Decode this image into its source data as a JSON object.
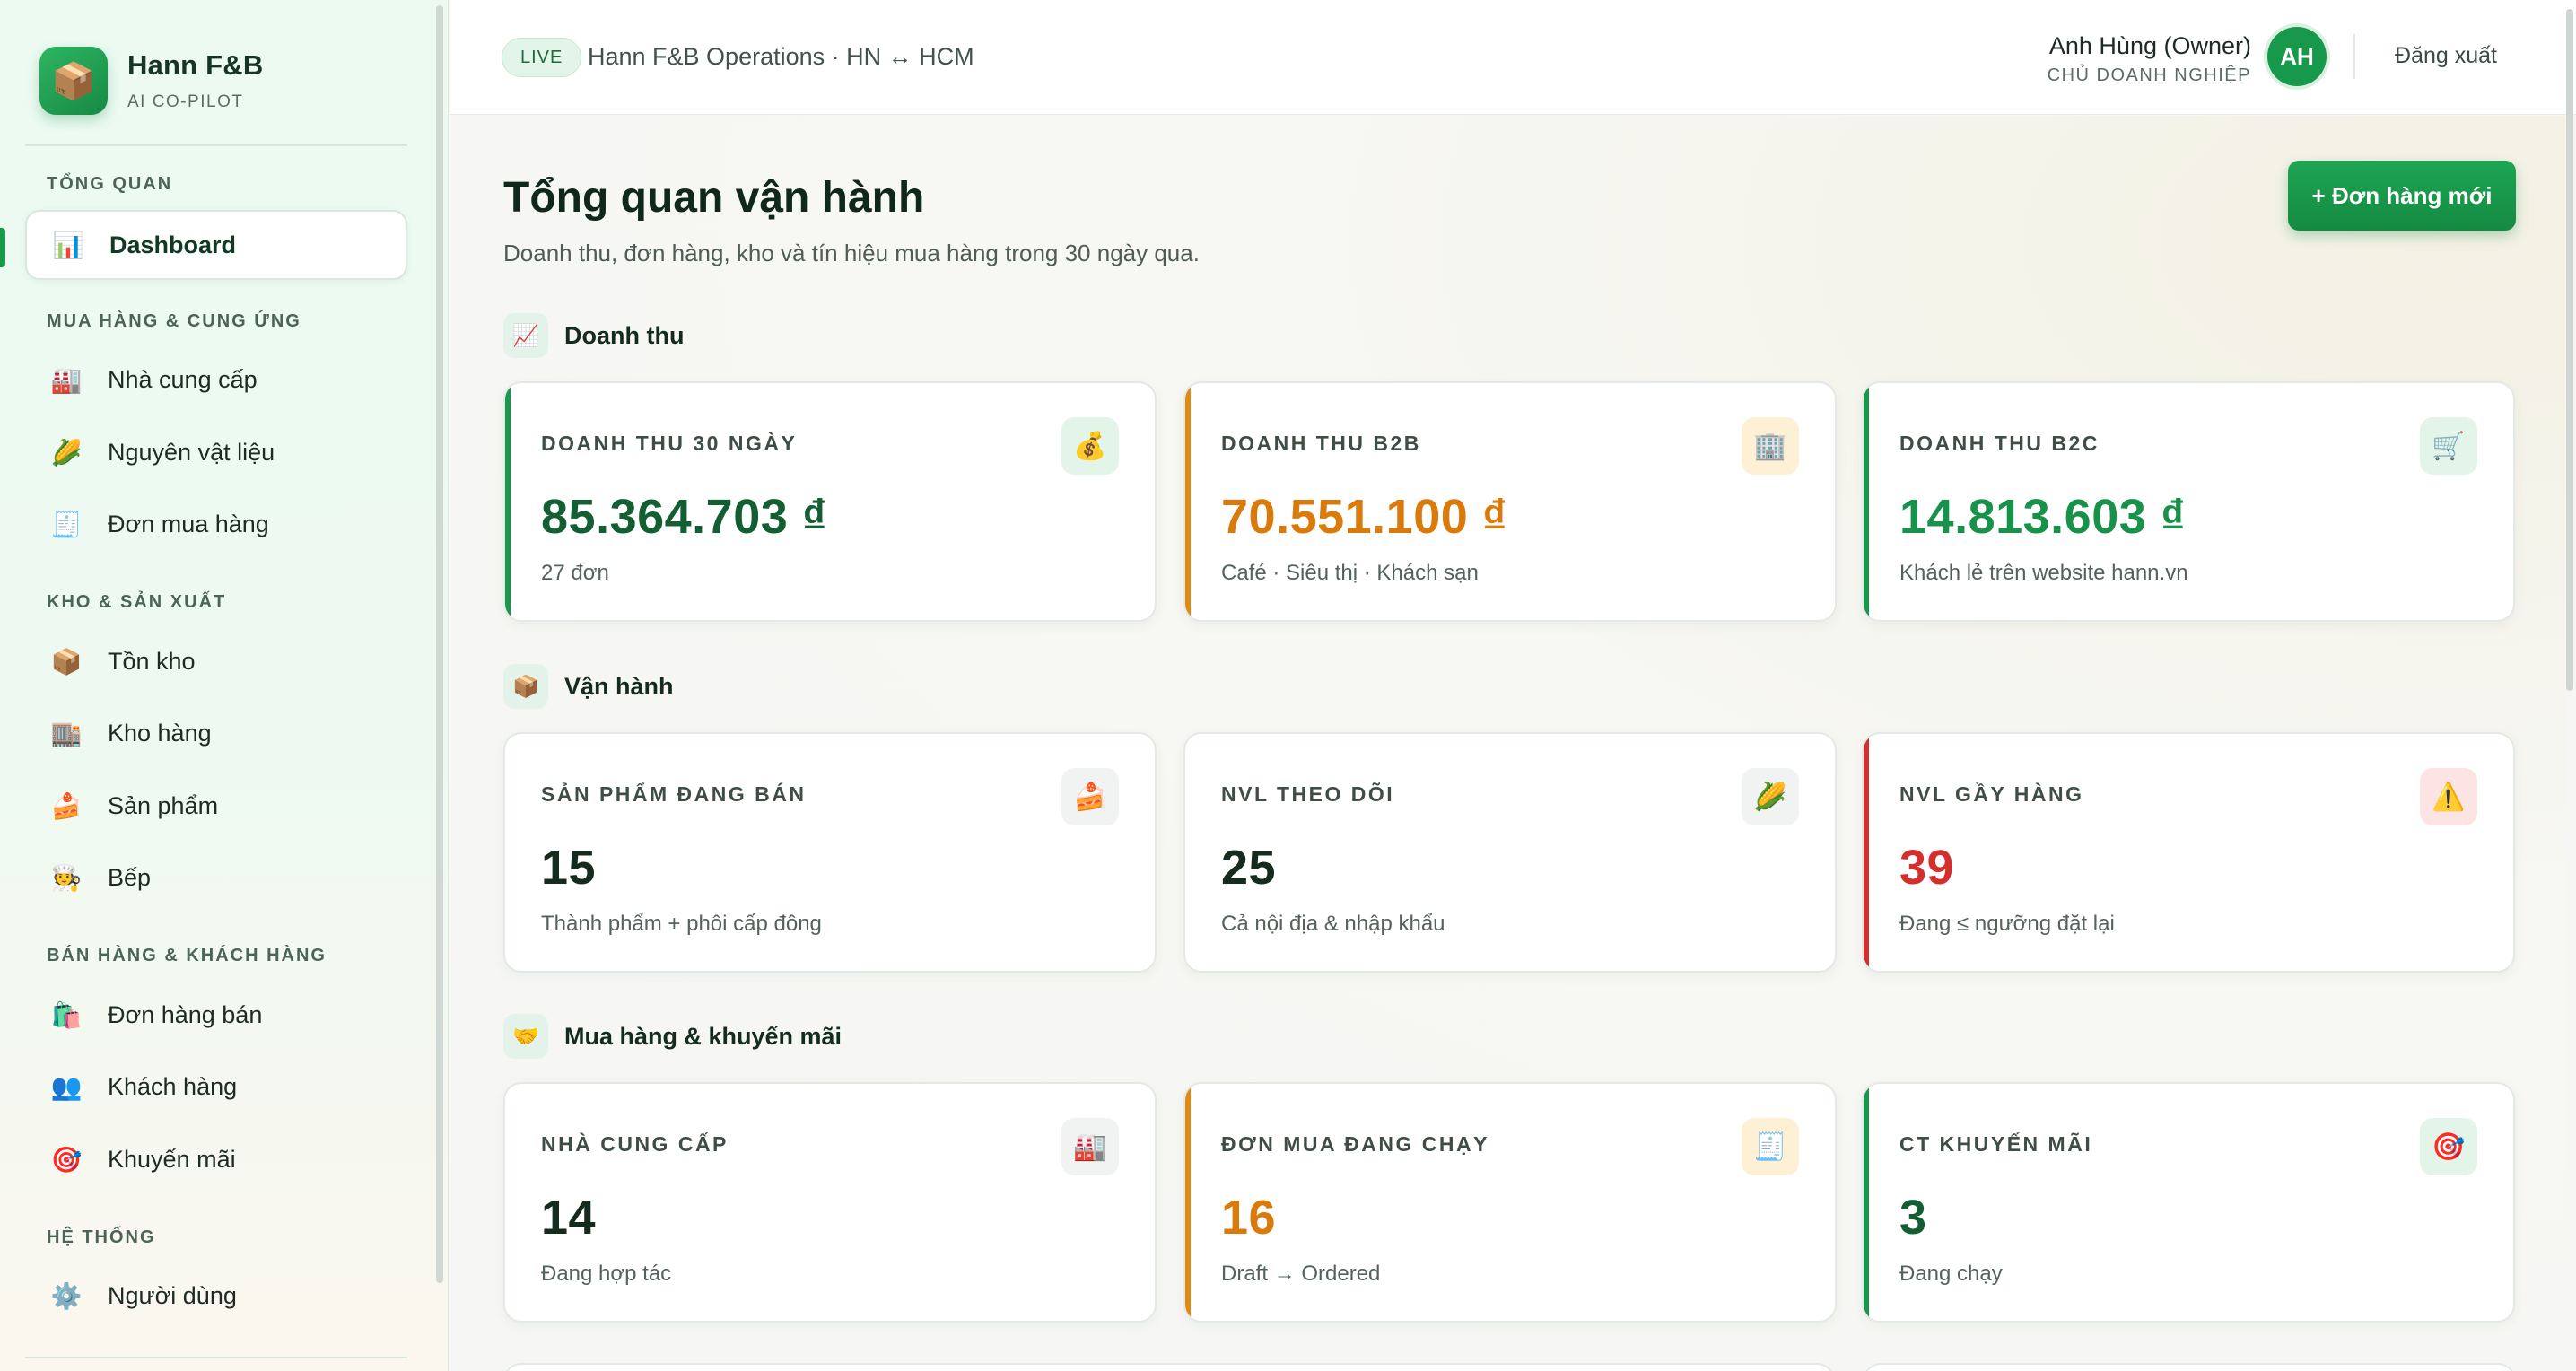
{
  "brand": {
    "name": "Hann F&B",
    "subtitle": "AI CO-PILOT",
    "logo_icon": "package-icon"
  },
  "sidebar": {
    "sections": [
      {
        "title": "TỔNG QUAN",
        "items": [
          {
            "label": "Dashboard",
            "icon": "bar-chart-icon",
            "glyph": "📊",
            "active": true
          }
        ]
      },
      {
        "title": "MUA HÀNG & CUNG ỨNG",
        "items": [
          {
            "label": "Nhà cung cấp",
            "icon": "factory-icon",
            "glyph": "🏭"
          },
          {
            "label": "Nguyên vật liệu",
            "icon": "corn-icon",
            "glyph": "🌽"
          },
          {
            "label": "Đơn mua hàng",
            "icon": "receipt-icon",
            "glyph": "🧾"
          }
        ]
      },
      {
        "title": "KHO & SẢN XUẤT",
        "items": [
          {
            "label": "Tồn kho",
            "icon": "box-icon",
            "glyph": "📦"
          },
          {
            "label": "Kho hàng",
            "icon": "building-icon",
            "glyph": "🏬"
          },
          {
            "label": "Sản phẩm",
            "icon": "cake-icon",
            "glyph": "🍰"
          },
          {
            "label": "Bếp",
            "icon": "chef-icon",
            "glyph": "🧑‍🍳"
          }
        ]
      },
      {
        "title": "BÁN HÀNG & KHÁCH HÀNG",
        "items": [
          {
            "label": "Đơn hàng bán",
            "icon": "shopping-bag-icon",
            "glyph": "🛍️"
          },
          {
            "label": "Khách hàng",
            "icon": "people-icon",
            "glyph": "👥"
          },
          {
            "label": "Khuyến mãi",
            "icon": "target-icon",
            "glyph": "🎯"
          }
        ]
      },
      {
        "title": "HỆ THỐNG",
        "items": [
          {
            "label": "Người dùng",
            "icon": "gear-icon",
            "glyph": "⚙️"
          }
        ]
      }
    ]
  },
  "header": {
    "live_badge": "LIVE",
    "ops_title": "Hann F&B Operations · HN ↔ HCM",
    "user_name": "Anh Hùng (Owner)",
    "user_role": "CHỦ DOANH NGHIỆP",
    "avatar_initials": "AH",
    "logout_label": "Đăng xuất"
  },
  "page": {
    "title": "Tổng quan vận hành",
    "subtitle": "Doanh thu, đơn hàng, kho và tín hiệu mua hàng trong 30 ngày qua.",
    "new_order_label": "+ Đơn hàng mới"
  },
  "sections": [
    {
      "title": "Doanh thu",
      "icon": "chart-up-icon",
      "glyph": "📈",
      "cards": [
        {
          "label": "DOANH THU 30 NGÀY",
          "value": "85.364.703 ₫",
          "note": "27 đơn",
          "icon": "money-bag-icon",
          "glyph": "💰",
          "accent": "#17984a",
          "value_color": "#135f33",
          "icon_bg": "#e3f5e8"
        },
        {
          "label": "DOANH THU B2B",
          "value": "70.551.100 ₫",
          "note": "Café · Siêu thị · Khách sạn",
          "icon": "office-building-icon",
          "glyph": "🏢",
          "accent": "#e08a12",
          "value_color": "#d97a0b",
          "icon_bg": "#fdf0d4"
        },
        {
          "label": "DOANH THU B2C",
          "value": "14.813.603 ₫",
          "note": "Khách lẻ trên website hann.vn",
          "icon": "cart-icon",
          "glyph": "🛒",
          "accent": "#17984a",
          "value_color": "#18924a",
          "icon_bg": "#e3f5e8"
        }
      ]
    },
    {
      "title": "Vận hành",
      "icon": "box-icon",
      "glyph": "📦",
      "cards": [
        {
          "label": "SẢN PHẨM ĐANG BÁN",
          "value": "15",
          "note": "Thành phẩm + phôi cấp đông",
          "icon": "cake-icon",
          "glyph": "🍰",
          "accent": "",
          "value_color": "#142b1e",
          "icon_bg": "#f1f3f2"
        },
        {
          "label": "NVL THEO DÕI",
          "value": "25",
          "note": "Cả nội địa & nhập khẩu",
          "icon": "corn-icon",
          "glyph": "🌽",
          "accent": "",
          "value_color": "#142b1e",
          "icon_bg": "#f1f3f2"
        },
        {
          "label": "NVL GẦY HÀNG",
          "value": "39",
          "note": "Đang ≤ ngưỡng đặt lại",
          "icon": "warning-icon",
          "glyph": "⚠️",
          "accent": "#d62d2d",
          "value_color": "#d62d2d",
          "icon_bg": "#fde4e4"
        }
      ]
    },
    {
      "title": "Mua hàng & khuyến mãi",
      "icon": "handshake-icon",
      "glyph": "🤝",
      "cards": [
        {
          "label": "NHÀ CUNG CẤP",
          "value": "14",
          "note": "Đang hợp tác",
          "icon": "factory-icon",
          "glyph": "🏭",
          "accent": "",
          "value_color": "#142b1e",
          "icon_bg": "#f1f3f2"
        },
        {
          "label": "ĐƠN MUA ĐANG CHẠY",
          "value": "16",
          "note": "Draft → Ordered",
          "icon": "receipt-icon",
          "glyph": "🧾",
          "accent": "#e08a12",
          "value_color": "#d97a0b",
          "icon_bg": "#fdf0d4"
        },
        {
          "label": "CT KHUYẾN MÃI",
          "value": "3",
          "note": "Đang chạy",
          "icon": "target-icon",
          "glyph": "🎯",
          "accent": "#17984a",
          "value_color": "#135f33",
          "icon_bg": "#e3f5e8"
        }
      ]
    }
  ]
}
